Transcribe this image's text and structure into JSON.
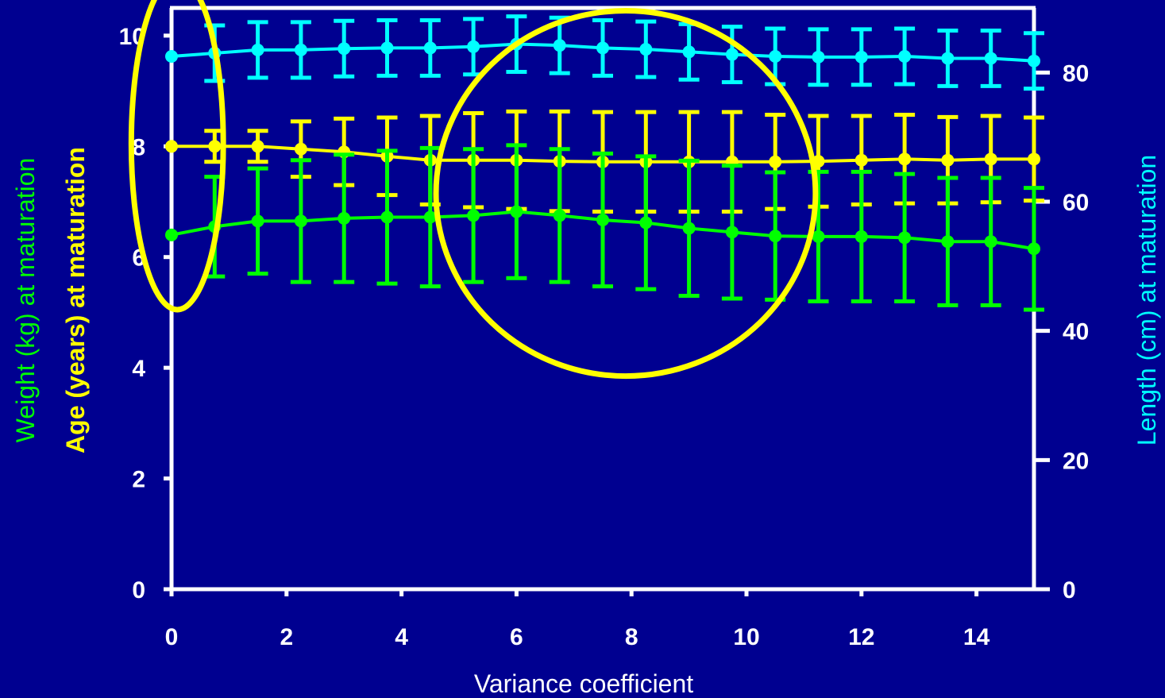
{
  "chart_data": {
    "type": "line",
    "xlabel": "Variance coefficient",
    "ylabel_left_weight": "Weight (kg) at maturation",
    "ylabel_left_age": "Age (years) at maturation",
    "ylabel_right": "Length (cm) at maturation",
    "xlim": [
      0,
      15
    ],
    "ylim_left": [
      0,
      10.5
    ],
    "ylim_right": [
      0,
      90
    ],
    "x_ticks": [
      "0",
      "2",
      "4",
      "6",
      "8",
      "10",
      "12",
      "14"
    ],
    "y_left_ticks": [
      "0",
      "2",
      "4",
      "6",
      "8",
      "10"
    ],
    "y_right_ticks": [
      "0",
      "20",
      "40",
      "60",
      "80"
    ],
    "x": [
      0,
      0.75,
      1.5,
      2.25,
      3,
      3.75,
      4.5,
      5.25,
      6,
      6.75,
      7.5,
      8.25,
      9,
      9.75,
      10.5,
      11.25,
      12,
      12.75,
      13.5,
      14.25,
      15
    ],
    "series": [
      {
        "name": "Length (cm) at maturation",
        "axis": "right",
        "color": "#00ffff",
        "values": [
          82.5,
          83,
          83.5,
          83.5,
          83.7,
          83.8,
          83.8,
          84,
          84.4,
          84.2,
          83.8,
          83.6,
          83.2,
          82.8,
          82.5,
          82.4,
          82.4,
          82.5,
          82.2,
          82.2,
          81.8
        ],
        "errors": [
          0,
          4.3,
          4.3,
          4.3,
          4.3,
          4.3,
          4.3,
          4.3,
          4.3,
          4.3,
          4.3,
          4.3,
          4.3,
          4.3,
          4.3,
          4.3,
          4.3,
          4.3,
          4.3,
          4.3,
          4.3
        ]
      },
      {
        "name": "Age (years) at maturation",
        "axis": "left",
        "color": "#ffff00",
        "values": [
          8.0,
          8.0,
          8.0,
          7.95,
          7.9,
          7.82,
          7.75,
          7.75,
          7.75,
          7.73,
          7.72,
          7.72,
          7.72,
          7.72,
          7.72,
          7.73,
          7.75,
          7.77,
          7.75,
          7.77,
          7.77
        ],
        "errors": [
          0,
          0.28,
          0.28,
          0.5,
          0.6,
          0.7,
          0.8,
          0.85,
          0.88,
          0.9,
          0.9,
          0.9,
          0.9,
          0.9,
          0.85,
          0.82,
          0.8,
          0.8,
          0.78,
          0.78,
          0.75
        ]
      },
      {
        "name": "Weight (kg) at maturation",
        "axis": "left",
        "color": "#00ff00",
        "values": [
          6.4,
          6.55,
          6.65,
          6.65,
          6.7,
          6.72,
          6.72,
          6.75,
          6.82,
          6.75,
          6.67,
          6.62,
          6.52,
          6.45,
          6.38,
          6.37,
          6.37,
          6.35,
          6.28,
          6.28,
          6.15
        ],
        "errors": [
          0,
          0.9,
          0.95,
          1.1,
          1.15,
          1.2,
          1.25,
          1.2,
          1.2,
          1.2,
          1.2,
          1.2,
          1.22,
          1.2,
          1.15,
          1.17,
          1.17,
          1.15,
          1.15,
          1.15,
          1.1
        ]
      }
    ],
    "annotations": [
      {
        "shape": "ellipse",
        "color": "#ffff00",
        "cx": 0.1,
        "cy_left": 8.05,
        "rx_x": 0.8,
        "ry_left": 3.0
      },
      {
        "shape": "ellipse",
        "color": "#ffff00",
        "cx": 7.9,
        "cy_left": 7.15,
        "rx_x": 3.3,
        "ry_left": 3.3
      }
    ]
  }
}
